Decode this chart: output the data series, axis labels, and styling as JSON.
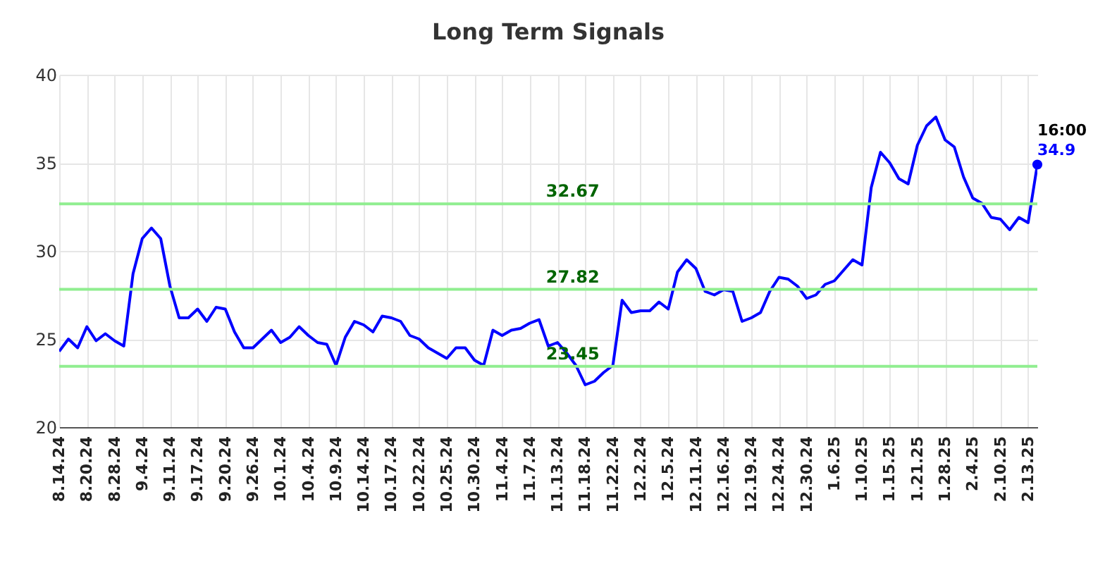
{
  "chart_data": {
    "type": "line",
    "title": "Long Term Signals",
    "categories": [
      "8.14.24",
      null,
      null,
      "8.20.24",
      null,
      null,
      "8.28.24",
      null,
      null,
      "9.4.24",
      null,
      null,
      "9.11.24",
      null,
      null,
      "9.17.24",
      null,
      null,
      "9.20.24",
      null,
      null,
      "9.26.24",
      null,
      null,
      "10.1.24",
      null,
      null,
      "10.4.24",
      null,
      null,
      "10.9.24",
      null,
      null,
      "10.14.24",
      null,
      null,
      "10.17.24",
      null,
      null,
      "10.22.24",
      null,
      null,
      "10.25.24",
      null,
      null,
      "10.30.24",
      null,
      null,
      "11.4.24",
      null,
      null,
      "11.7.24",
      null,
      null,
      "11.13.24",
      null,
      null,
      "11.18.24",
      null,
      null,
      "11.22.24",
      null,
      null,
      "12.2.24",
      null,
      null,
      "12.5.24",
      null,
      null,
      "12.11.24",
      null,
      null,
      "12.16.24",
      null,
      null,
      "12.19.24",
      null,
      null,
      "12.24.24",
      null,
      null,
      "12.30.24",
      null,
      null,
      "1.6.25",
      null,
      null,
      "1.10.25",
      null,
      null,
      "1.15.25",
      null,
      null,
      "1.21.25",
      null,
      null,
      "1.28.25",
      null,
      null,
      "2.4.25",
      null,
      null,
      "2.10.25",
      null,
      null,
      "2.13.25",
      null
    ],
    "series": [
      {
        "color": "#0000ff",
        "values": [
          24.3,
          25.0,
          24.5,
          25.7,
          24.9,
          25.3,
          24.9,
          24.6,
          28.7,
          30.7,
          31.3,
          30.7,
          28.0,
          26.2,
          26.2,
          26.7,
          26.0,
          26.8,
          26.7,
          25.4,
          24.5,
          24.5,
          25.0,
          25.5,
          24.8,
          25.1,
          25.7,
          25.2,
          24.8,
          24.7,
          23.5,
          25.1,
          26.0,
          25.8,
          25.4,
          26.3,
          26.2,
          26.0,
          25.2,
          25.0,
          24.5,
          24.2,
          23.9,
          24.5,
          24.5,
          23.8,
          23.5,
          25.5,
          25.2,
          25.5,
          25.6,
          25.9,
          26.1,
          24.6,
          24.8,
          24.2,
          23.5,
          22.4,
          22.6,
          23.1,
          23.5,
          27.2,
          26.5,
          26.6,
          26.6,
          27.1,
          26.7,
          28.8,
          29.5,
          29.0,
          27.7,
          27.5,
          27.8,
          27.7,
          26.0,
          26.2,
          26.5,
          27.7,
          28.5,
          28.4,
          28.0,
          27.3,
          27.5,
          28.1,
          28.3,
          28.9,
          29.5,
          29.2,
          33.6,
          35.6,
          35.0,
          34.1,
          33.8,
          36.0,
          37.1,
          37.6,
          36.3,
          35.9,
          34.2,
          33.0,
          32.7,
          31.9,
          31.8,
          31.2,
          31.9,
          31.6,
          34.9
        ],
        "value_labels": [
          null,
          null,
          null,
          null,
          null,
          null,
          null,
          null,
          null,
          null,
          null,
          null,
          null,
          null,
          null,
          null,
          null,
          null,
          null,
          null,
          null,
          null,
          null,
          null,
          null,
          null,
          null,
          null,
          null,
          null,
          null,
          null,
          null,
          null,
          null,
          null,
          null,
          null,
          null,
          null,
          null,
          null,
          null,
          null,
          null,
          null,
          null,
          null,
          null,
          null,
          null,
          null,
          null,
          null,
          null,
          null,
          null,
          null,
          null,
          null,
          null,
          null,
          null,
          null,
          null,
          null,
          null,
          null,
          null,
          null,
          null,
          null,
          null,
          null,
          null,
          null,
          null,
          null,
          null,
          null,
          null,
          null,
          null,
          null,
          null,
          null,
          null,
          null,
          null,
          null,
          null,
          null,
          null,
          null,
          null,
          null,
          null,
          null,
          null,
          null,
          null,
          null,
          null,
          null,
          null,
          null,
          "34.9"
        ]
      }
    ],
    "annotations": [
      "16:00"
    ],
    "ylim": [
      20,
      40
    ],
    "yticks": [
      20,
      25,
      30,
      35,
      40
    ],
    "grid": true,
    "ref_lines": [
      {
        "axis": "y",
        "value": 32.67,
        "label": "32.67",
        "color": "#90ee90"
      },
      {
        "axis": "y",
        "value": 27.82,
        "label": "27.82",
        "color": "#90ee90"
      },
      {
        "axis": "y",
        "value": 23.45,
        "label": "23.45",
        "color": "#90ee90"
      }
    ]
  }
}
